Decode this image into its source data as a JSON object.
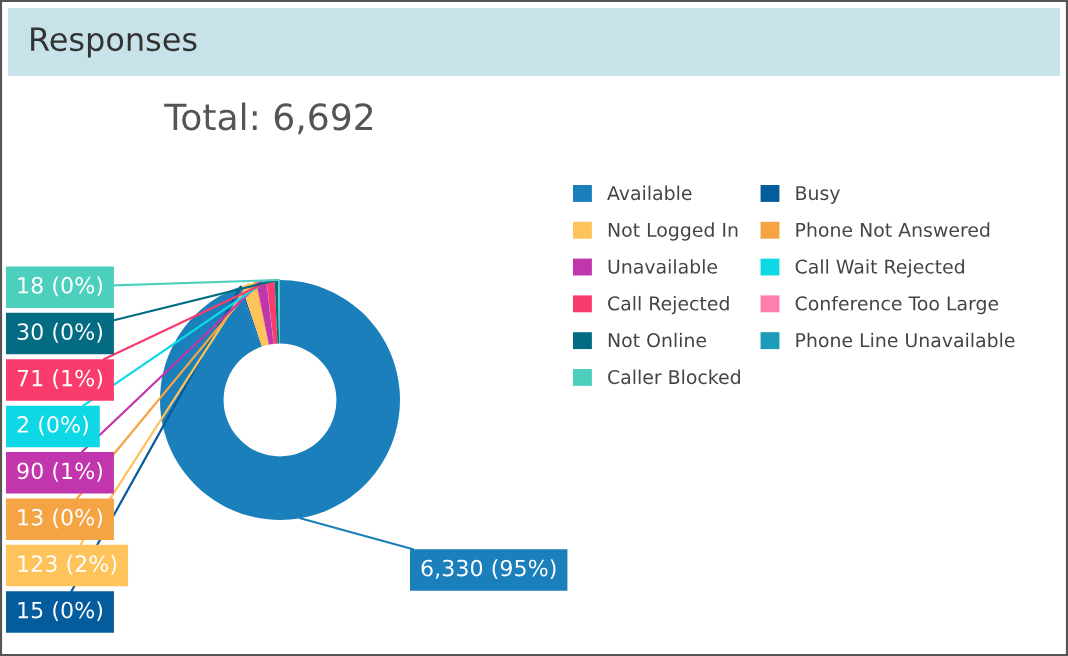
{
  "chart_data": {
    "type": "donut",
    "title": "Responses",
    "subtitle": "Total: 6,692",
    "categories": [
      "Available",
      "Busy",
      "Not Logged In",
      "Phone Not Answered",
      "Unavailable",
      "Call Wait Rejected",
      "Call Rejected",
      "Conference Too Large",
      "Not Online",
      "Phone Line Unavailable",
      "Caller Blocked"
    ],
    "values": [
      6330,
      15,
      123,
      13,
      90,
      2,
      71,
      0,
      30,
      0,
      18
    ],
    "colors": [
      "#1a7fba",
      "#055c9d",
      "#fec35a",
      "#f4a443",
      "#c136ad",
      "#0fd8e6",
      "#fa3c6c",
      "#ff7eae",
      "#046c82",
      "#1c9cba",
      "#4cd0bd"
    ],
    "value_labels": [
      "6,330 (95%)",
      "15 (0%)",
      "123 (2%)",
      "13 (0%)",
      "90 (1%)",
      "2 (0%)",
      "71 (1%)",
      null,
      "30 (0%)",
      null,
      "18 (0%)"
    ],
    "legend": "right"
  }
}
